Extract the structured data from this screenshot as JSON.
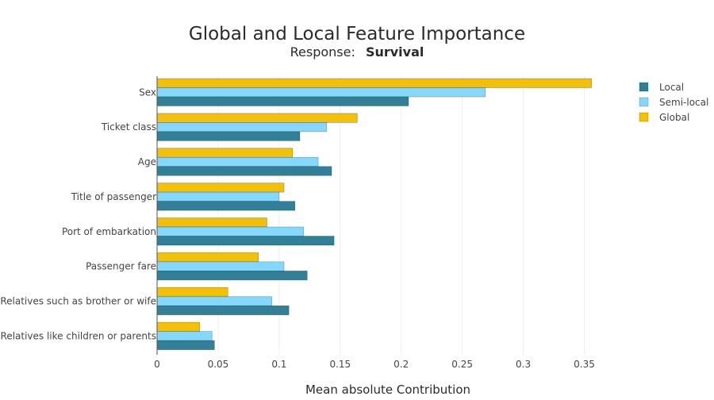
{
  "chart_data": {
    "type": "bar",
    "orientation": "horizontal",
    "title": "Global and Local Feature Importance",
    "subtitle_prefix": "Response:",
    "subtitle_value": "Survival",
    "xlabel": "Mean absolute Contribution",
    "ylabel": "",
    "xlim": [
      0,
      0.375
    ],
    "x_ticks": [
      0,
      0.05,
      0.1,
      0.15,
      0.2,
      0.25,
      0.3,
      0.35
    ],
    "x_tick_labels": [
      "0",
      "0.05",
      "0.1",
      "0.15",
      "0.2",
      "0.25",
      "0.3",
      "0.35"
    ],
    "grid": "vertical",
    "legend_position": "top-right",
    "categories": [
      "Sex",
      "Ticket class",
      "Age",
      "Title of passenger",
      "Port of embarkation",
      "Passenger fare",
      "Relatives such as brother or wife",
      "Relatives like children or parents"
    ],
    "series": [
      {
        "name": "Local",
        "color": "#327f97",
        "values": [
          0.206,
          0.117,
          0.143,
          0.113,
          0.145,
          0.123,
          0.108,
          0.047
        ]
      },
      {
        "name": "Semi-local",
        "color": "#85d7fb",
        "values": [
          0.269,
          0.139,
          0.132,
          0.1,
          0.12,
          0.104,
          0.094,
          0.045
        ]
      },
      {
        "name": "Global",
        "color": "#f3bf07",
        "values": [
          0.356,
          0.164,
          0.111,
          0.104,
          0.09,
          0.083,
          0.058,
          0.035
        ]
      }
    ]
  }
}
